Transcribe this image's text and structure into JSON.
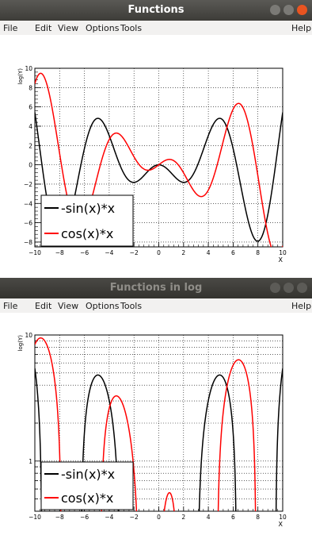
{
  "windows": [
    {
      "title": "Functions",
      "menu": [
        "File",
        "Edit",
        "View",
        "Options",
        "Tools"
      ],
      "help_label": "Help",
      "buttons": [
        "minimize-icon",
        "maximize-icon",
        "close-icon"
      ]
    },
    {
      "title": "Functions in log",
      "menu": [
        "File",
        "Edit",
        "View",
        "Options",
        "Tools"
      ],
      "help_label": "Help",
      "buttons": [
        "minimize-icon",
        "maximize-icon",
        "close-icon"
      ]
    }
  ],
  "colors": {
    "series1": "#000000",
    "series2": "#ff0000",
    "close": "#e95420"
  },
  "chart_data": [
    {
      "type": "line",
      "ylabel": "log(Y)",
      "xlabel": "X",
      "xlim": [
        -10,
        10
      ],
      "ylim": [
        -8.5,
        10
      ],
      "xticks": [
        "-10",
        "-8",
        "-6",
        "-4",
        "-2",
        "0",
        "2",
        "4",
        "6",
        "8",
        "10"
      ],
      "yticks": [
        "-8",
        "-6",
        "-4",
        "-2",
        "0",
        "2",
        "4",
        "6",
        "8",
        "10"
      ],
      "grid": true,
      "legend_position": "bottom-left",
      "series": [
        {
          "name": "-sin(x)*x",
          "expression": "-sin(x)*x",
          "color": "#000000"
        },
        {
          "name": "cos(x)*x",
          "expression": "cos(x)*x",
          "color": "#ff0000"
        }
      ]
    },
    {
      "type": "line",
      "log_y": true,
      "ylabel": "log(Y)",
      "xlabel": "X",
      "xlim": [
        -10,
        10
      ],
      "ylim": [
        0.4,
        10
      ],
      "xticks": [
        "-10",
        "-8",
        "-6",
        "-4",
        "-2",
        "0",
        "2",
        "4",
        "6",
        "8",
        "10"
      ],
      "yticks": [
        "1",
        "10"
      ],
      "grid": true,
      "legend_position": "bottom-left",
      "series": [
        {
          "name": "-sin(x)*x",
          "expression": "-sin(x)*x",
          "color": "#000000"
        },
        {
          "name": "cos(x)*x",
          "expression": "cos(x)*x",
          "color": "#ff0000"
        }
      ]
    }
  ]
}
